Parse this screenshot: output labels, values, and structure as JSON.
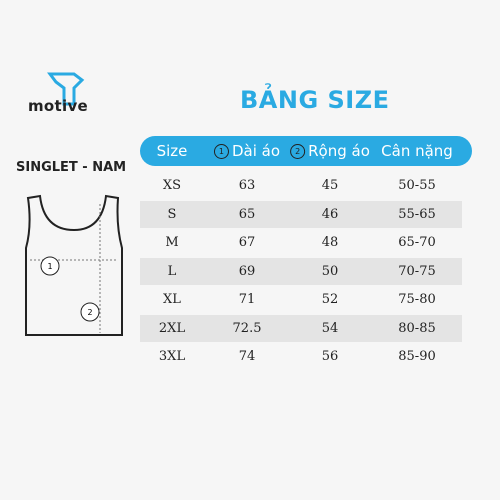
{
  "brand": "motive",
  "title": "BẢNG SIZE",
  "product": "SINGLET - NAM",
  "diagram": {
    "markers": [
      "1",
      "2"
    ]
  },
  "table": {
    "header": [
      {
        "label": "Size"
      },
      {
        "marker": "1",
        "label": "Dài áo"
      },
      {
        "marker": "2",
        "label": "Rộng áo"
      },
      {
        "label": "Cân nặng"
      }
    ],
    "rows": [
      [
        "XS",
        "63",
        "45",
        "50-55"
      ],
      [
        "S",
        "65",
        "46",
        "55-65"
      ],
      [
        "M",
        "67",
        "48",
        "65-70"
      ],
      [
        "L",
        "69",
        "50",
        "70-75"
      ],
      [
        "XL",
        "71",
        "52",
        "75-80"
      ],
      [
        "2XL",
        "72.5",
        "54",
        "80-85"
      ],
      [
        "3XL",
        "74",
        "56",
        "85-90"
      ]
    ]
  }
}
